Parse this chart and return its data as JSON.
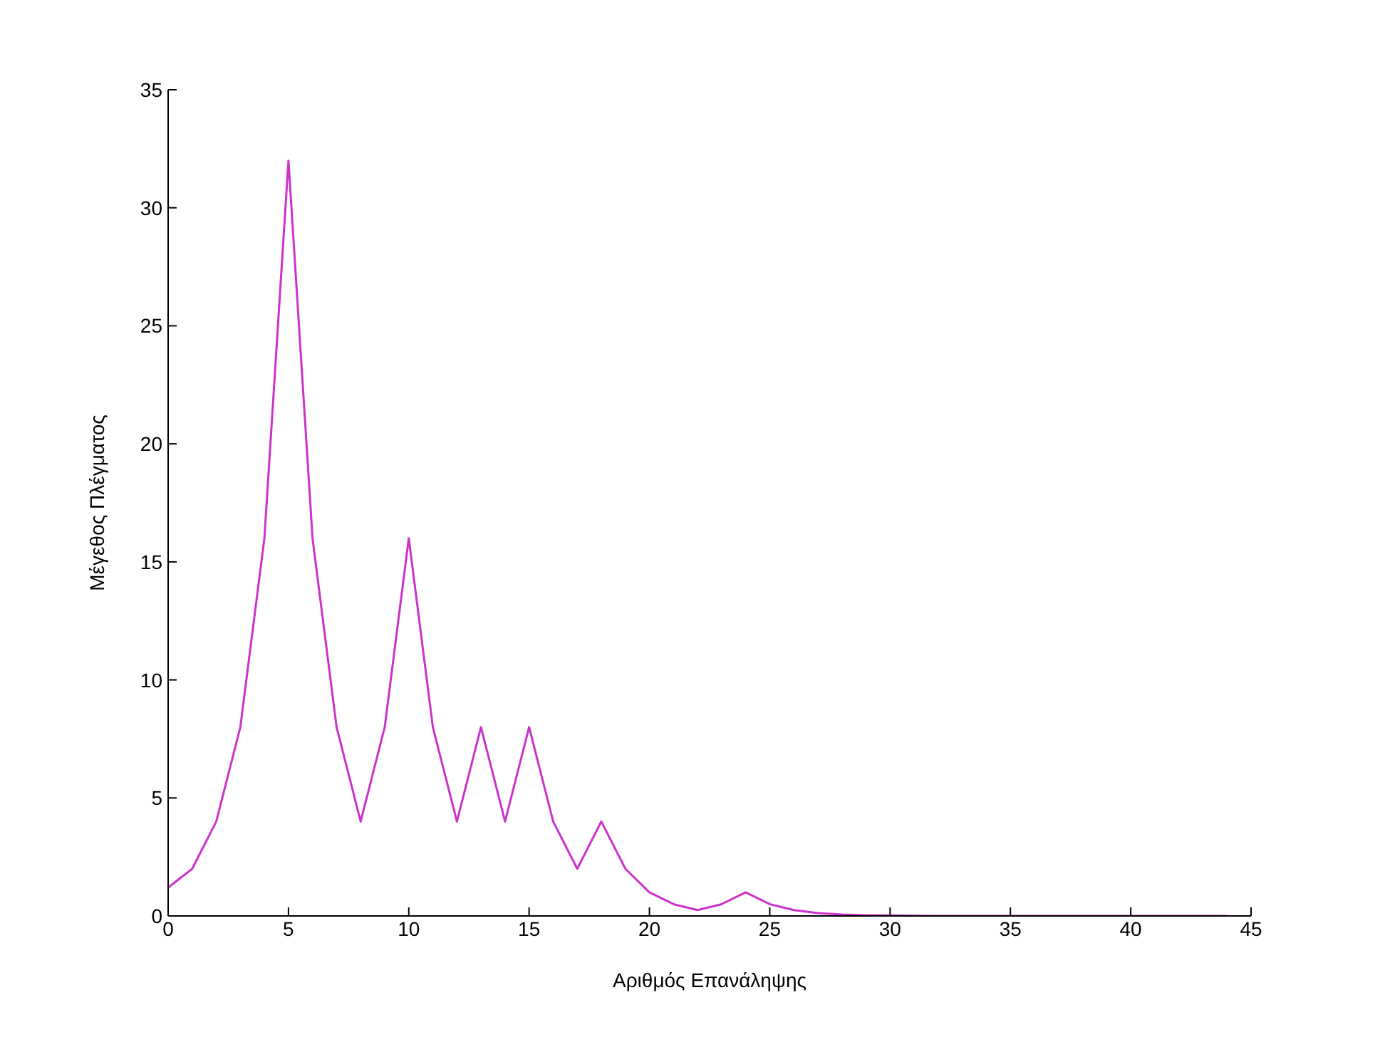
{
  "chart_data": {
    "type": "line",
    "xlabel": "Αριθμός Επανάληψης",
    "ylabel": "Μέγεθος Πλέγματος",
    "x": [
      0,
      1,
      2,
      3,
      4,
      5,
      6,
      7,
      8,
      9,
      10,
      11,
      12,
      13,
      14,
      15,
      16,
      17,
      18,
      19,
      20,
      21,
      22,
      23,
      24,
      25,
      26,
      27,
      28,
      29,
      30,
      31,
      32,
      33,
      34,
      35,
      36,
      37,
      38,
      39,
      40,
      41,
      42,
      43,
      44
    ],
    "series": [
      {
        "color": "#cc33cc",
        "values": [
          1.2,
          2,
          4,
          8,
          16,
          32,
          16,
          8,
          4,
          8,
          16,
          8,
          4,
          8,
          4,
          8,
          4,
          2,
          4,
          2,
          1,
          0.5,
          0.25,
          0.5,
          1,
          0.5,
          0.25,
          0.12,
          0.06,
          0.03,
          0.02,
          0.01,
          0,
          0,
          0,
          0,
          0,
          0,
          0,
          0,
          0,
          0,
          0,
          0,
          0
        ]
      }
    ],
    "xlim": [
      0,
      45
    ],
    "xticks": [
      0,
      5,
      10,
      15,
      20,
      25,
      30,
      35,
      40,
      45
    ],
    "ylim": [
      0,
      35
    ],
    "yticks": [
      0,
      5,
      10,
      15,
      20,
      25,
      30,
      35
    ],
    "grid": false,
    "legend": false,
    "marker": "none",
    "line_style": "solid"
  }
}
